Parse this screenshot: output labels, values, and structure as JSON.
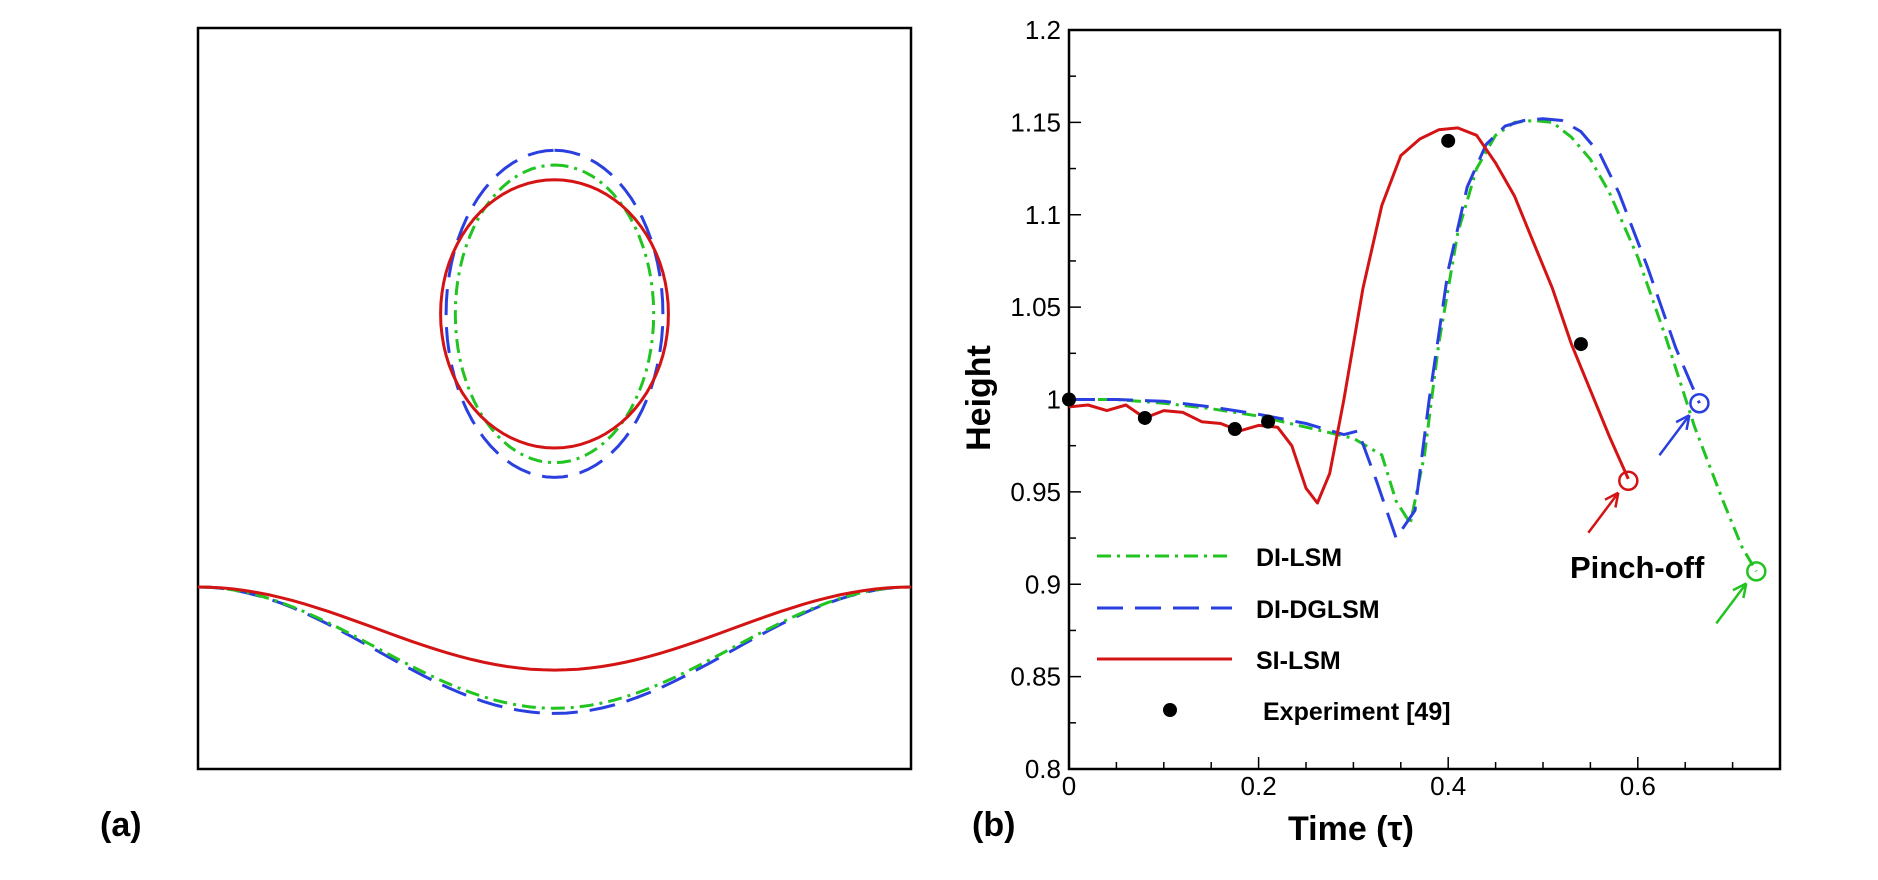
{
  "colors": {
    "DI-LSM": "#22c422",
    "DI-DGLSM": "#2a3fe0",
    "SI-LSM": "#d41414",
    "Experiment": "#000000"
  },
  "chart_data": [
    {
      "panel": "(a)",
      "type": "interface-contours",
      "contours": [
        {
          "series": "DI-DGLSM",
          "shape": "drop",
          "width": 2.95,
          "height": 4.45
        },
        {
          "series": "DI-LSM",
          "shape": "drop",
          "width": 2.7,
          "height": 4.05
        },
        {
          "series": "SI-LSM",
          "shape": "drop",
          "width": 3.1,
          "height": 3.65
        },
        {
          "series": "DI-DGLSM",
          "shape": "surface",
          "depth": 1.72
        },
        {
          "series": "DI-LSM",
          "shape": "surface",
          "depth": 1.65
        },
        {
          "series": "SI-LSM",
          "shape": "surface",
          "depth": 1.13
        }
      ]
    },
    {
      "panel": "(b)",
      "type": "line",
      "xlabel": "Time (τ)",
      "ylabel": "Height",
      "xlim": [
        0,
        0.75
      ],
      "ylim": [
        0.8,
        1.2
      ],
      "xticks": [
        "0",
        "0.2",
        "0.4",
        "0.6"
      ],
      "xtick_values": [
        0,
        0.2,
        0.4,
        0.6
      ],
      "yticks": [
        "0.8",
        "0.85",
        "0.9",
        "0.95",
        "1",
        "1.05",
        "1.1",
        "1.15",
        "1.2"
      ],
      "ytick_values": [
        0.8,
        0.85,
        0.9,
        0.95,
        1.0,
        1.05,
        1.1,
        1.15,
        1.2
      ],
      "legend_position": "bottom-left",
      "series": [
        {
          "name": "DI-LSM",
          "style": "dash-dot",
          "x": [
            0,
            0.05,
            0.1,
            0.15,
            0.2,
            0.25,
            0.3,
            0.33,
            0.345,
            0.36,
            0.375,
            0.39,
            0.41,
            0.43,
            0.45,
            0.47,
            0.49,
            0.51,
            0.53,
            0.55,
            0.57,
            0.6,
            0.63,
            0.66,
            0.69,
            0.71,
            0.725
          ],
          "y": [
            1.0,
            1.0,
            0.998,
            0.995,
            0.991,
            0.985,
            0.979,
            0.97,
            0.945,
            0.933,
            0.97,
            1.03,
            1.09,
            1.125,
            1.143,
            1.15,
            1.151,
            1.15,
            1.142,
            1.13,
            1.112,
            1.077,
            1.033,
            0.985,
            0.945,
            0.92,
            0.907
          ]
        },
        {
          "name": "DI-DGLSM",
          "style": "dashed",
          "x": [
            0,
            0.05,
            0.1,
            0.15,
            0.2,
            0.25,
            0.29,
            0.305,
            0.325,
            0.345,
            0.365,
            0.38,
            0.4,
            0.42,
            0.44,
            0.46,
            0.48,
            0.5,
            0.52,
            0.54,
            0.56,
            0.58,
            0.61,
            0.64,
            0.665
          ],
          "y": [
            1.0,
            1.0,
            0.999,
            0.996,
            0.992,
            0.987,
            0.981,
            0.983,
            0.955,
            0.925,
            0.94,
            1.0,
            1.07,
            1.115,
            1.138,
            1.148,
            1.151,
            1.152,
            1.151,
            1.145,
            1.133,
            1.112,
            1.072,
            1.028,
            0.998
          ]
        },
        {
          "name": "SI-LSM",
          "style": "solid",
          "x": [
            0,
            0.02,
            0.04,
            0.06,
            0.08,
            0.1,
            0.12,
            0.14,
            0.16,
            0.18,
            0.2,
            0.22,
            0.235,
            0.25,
            0.262,
            0.275,
            0.29,
            0.31,
            0.33,
            0.35,
            0.37,
            0.39,
            0.41,
            0.43,
            0.45,
            0.47,
            0.49,
            0.51,
            0.53,
            0.55,
            0.57,
            0.59
          ],
          "y": [
            0.996,
            0.997,
            0.994,
            0.997,
            0.99,
            0.994,
            0.993,
            0.988,
            0.987,
            0.983,
            0.986,
            0.985,
            0.975,
            0.952,
            0.944,
            0.96,
            1.0,
            1.06,
            1.105,
            1.132,
            1.141,
            1.146,
            1.147,
            1.143,
            1.128,
            1.11,
            1.085,
            1.06,
            1.03,
            1.005,
            0.98,
            0.957
          ]
        },
        {
          "name": "Experiment [49]",
          "style": "markers",
          "x": [
            0,
            0.08,
            0.175,
            0.21,
            0.4,
            0.54
          ],
          "y": [
            1.0,
            0.99,
            0.984,
            0.988,
            1.14,
            1.03
          ]
        }
      ],
      "pinch_off_points": [
        {
          "series": "SI-LSM",
          "x": 0.59,
          "y": 0.956
        },
        {
          "series": "DI-DGLSM",
          "x": 0.665,
          "y": 0.998
        },
        {
          "series": "DI-LSM",
          "x": 0.725,
          "y": 0.907
        }
      ],
      "annotation": "Pinch-off"
    }
  ],
  "labels": {
    "panel_a": "(a)",
    "panel_b": "(b)",
    "annotation": "Pinch-off",
    "xlabel": "Time (τ)",
    "ylabel": "Height"
  },
  "legend": [
    "DI-LSM",
    "DI-DGLSM",
    "SI-LSM",
    "Experiment [49]"
  ]
}
